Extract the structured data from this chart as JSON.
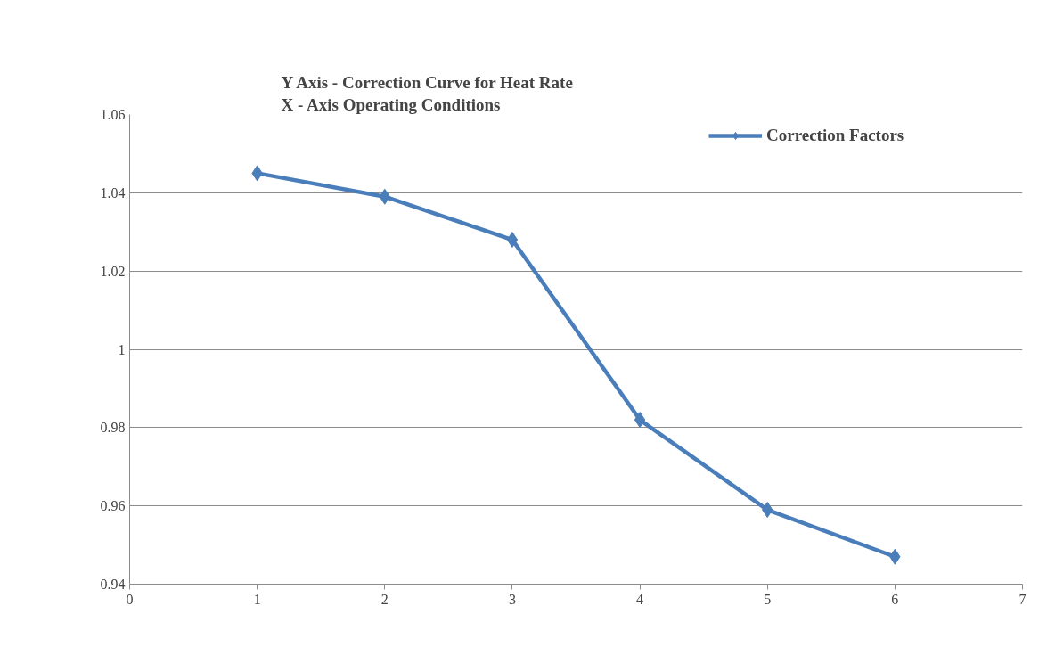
{
  "chart_data": {
    "type": "line",
    "title": "Y Axis - Correction Curve for Heat Rate",
    "subtitle": "X - Axis Operating Conditions",
    "x": [
      1,
      2,
      3,
      4,
      5,
      6
    ],
    "series": [
      {
        "name": "Correction Factors",
        "color": "#4a7ebb",
        "values": [
          1.045,
          1.039,
          1.028,
          0.982,
          0.959,
          0.947
        ]
      }
    ],
    "xlim": [
      0,
      7
    ],
    "xticks": [
      0,
      1,
      2,
      3,
      4,
      5,
      6,
      7
    ],
    "ylim": [
      0.94,
      1.06
    ],
    "yticks": [
      {
        "value": 0.94,
        "label": "0.94"
      },
      {
        "value": 0.96,
        "label": "0.96"
      },
      {
        "value": 0.98,
        "label": "0.98"
      },
      1,
      {
        "value": 1.02,
        "label": "1.02"
      },
      {
        "value": 1.04,
        "label": "1.04"
      },
      {
        "value": 1.06,
        "label": "1.06"
      }
    ],
    "grid": "y",
    "legend": "top right",
    "marker": "diamond",
    "line_style": "solid"
  }
}
